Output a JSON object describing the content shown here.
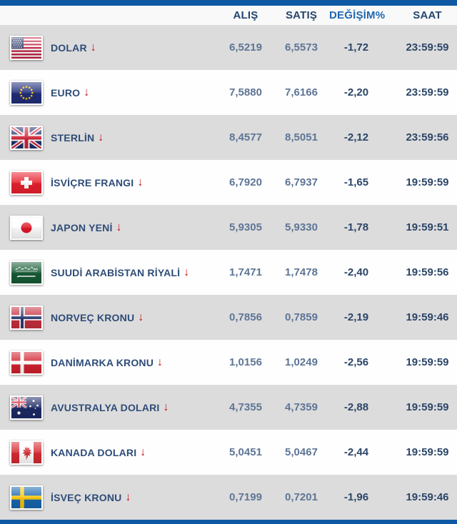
{
  "widget": {
    "type": "currency-rates-table"
  },
  "table": {
    "columns": [
      {
        "id": "alis",
        "label": "ALIŞ"
      },
      {
        "id": "satis",
        "label": "SATIŞ"
      },
      {
        "id": "degisim",
        "label": "DEĞİŞİM%"
      },
      {
        "id": "saat",
        "label": "SAAT"
      }
    ],
    "rows": [
      {
        "flag": "us-flag-icon",
        "currency": "DOLAR",
        "trend": "down",
        "alis": "6,5219",
        "satis": "6,5573",
        "degisim": "-1,72",
        "saat": "23:59:59"
      },
      {
        "flag": "eu-flag-icon",
        "currency": "EURO",
        "trend": "down",
        "alis": "7,5880",
        "satis": "7,6166",
        "degisim": "-2,20",
        "saat": "23:59:59"
      },
      {
        "flag": "uk-flag-icon",
        "currency": "STERLİN",
        "trend": "down",
        "alis": "8,4577",
        "satis": "8,5051",
        "degisim": "-2,12",
        "saat": "23:59:56"
      },
      {
        "flag": "switzerland-flag-icon",
        "currency": "İSVİÇRE FRANGI",
        "trend": "down",
        "alis": "6,7920",
        "satis": "6,7937",
        "degisim": "-1,65",
        "saat": "19:59:59"
      },
      {
        "flag": "japan-flag-icon",
        "currency": "JAPON YENİ",
        "trend": "down",
        "alis": "5,9305",
        "satis": "5,9330",
        "degisim": "-1,78",
        "saat": "19:59:51"
      },
      {
        "flag": "saudi-arabia-flag-icon",
        "currency": "SUUDİ ARABİSTAN RİYALİ",
        "trend": "down",
        "alis": "1,7471",
        "satis": "1,7478",
        "degisim": "-2,40",
        "saat": "19:59:56"
      },
      {
        "flag": "norway-flag-icon",
        "currency": "NORVEÇ KRONU",
        "trend": "down",
        "alis": "0,7856",
        "satis": "0,7859",
        "degisim": "-2,19",
        "saat": "19:59:46"
      },
      {
        "flag": "denmark-flag-icon",
        "currency": "DANİMARKA KRONU",
        "trend": "down",
        "alis": "1,0156",
        "satis": "1,0249",
        "degisim": "-2,56",
        "saat": "19:59:59"
      },
      {
        "flag": "australia-flag-icon",
        "currency": "AVUSTRALYA DOLARI",
        "trend": "down",
        "alis": "4,7355",
        "satis": "4,7359",
        "degisim": "-2,88",
        "saat": "19:59:59"
      },
      {
        "flag": "canada-flag-icon",
        "currency": "KANADA DOLARI",
        "trend": "down",
        "alis": "5,0451",
        "satis": "5,0467",
        "degisim": "-2,44",
        "saat": "19:59:59"
      },
      {
        "flag": "sweden-flag-icon",
        "currency": "İSVEÇ KRONU",
        "trend": "down",
        "alis": "0,7199",
        "satis": "0,7201",
        "degisim": "-1,96",
        "saat": "19:59:46"
      }
    ]
  },
  "icons": {
    "trend_down_arrow": "↓"
  },
  "colors": {
    "accent_bar": "#0f59a4",
    "header_text": "#24456e",
    "degisim_header_text": "#1f66b0",
    "currency_label_text": "#2e4c78",
    "rate_value_text": "#5e7596",
    "change_time_text": "#2b4568",
    "row_alt_background": "#dcdcdc",
    "trend_arrow_red": "#cc1018"
  }
}
